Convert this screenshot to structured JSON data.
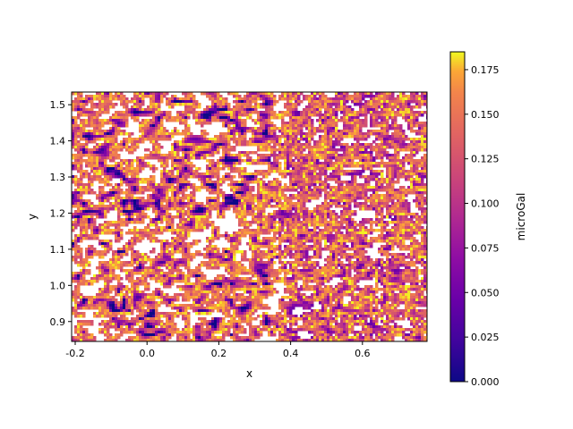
{
  "chart_data": {
    "type": "heatmap",
    "title": "",
    "xlabel": "x",
    "ylabel": "y",
    "xlim": [
      -0.21,
      0.78
    ],
    "ylim": [
      0.845,
      1.535
    ],
    "x_ticks": [
      -0.2,
      0.0,
      0.2,
      0.4,
      0.6
    ],
    "x_tick_labels": [
      "-0.2",
      "0.0",
      "0.2",
      "0.4",
      "0.6"
    ],
    "y_ticks": [
      0.9,
      1.0,
      1.1,
      1.2,
      1.3,
      1.4,
      1.5
    ],
    "y_tick_labels": [
      "0.9",
      "1.0",
      "1.1",
      "1.2",
      "1.3",
      "1.4",
      "1.5"
    ],
    "colormap": "plasma",
    "masked_color": "#ffffff",
    "colorbar": {
      "label": "microGal",
      "vmin": 0.0,
      "vmax": 0.185,
      "ticks": [
        0.0,
        0.025,
        0.05,
        0.075,
        0.1,
        0.125,
        0.15,
        0.175
      ],
      "tick_labels": [
        "0.000",
        "0.025",
        "0.050",
        "0.075",
        "0.100",
        "0.125",
        "0.150",
        "0.175"
      ]
    },
    "grid": false,
    "legend": "none"
  }
}
